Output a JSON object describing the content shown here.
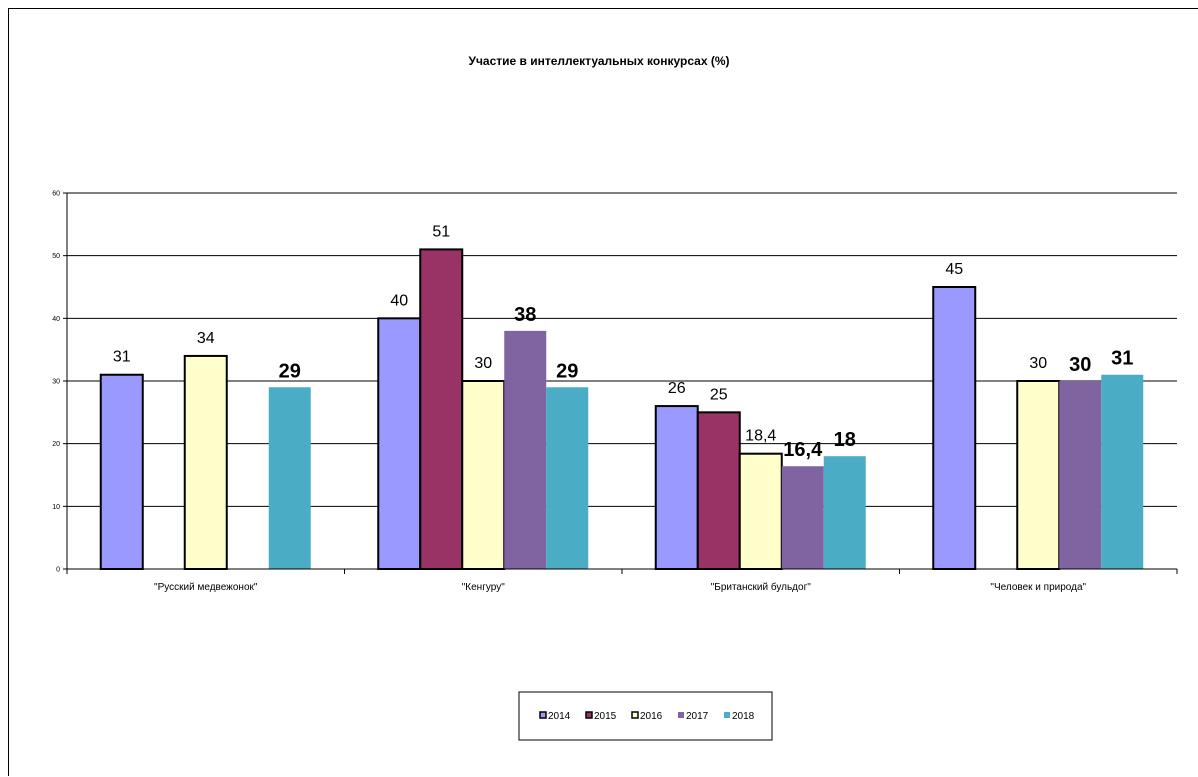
{
  "chart_data": {
    "type": "bar",
    "title": "Участие в интеллектуальных конкурсах (%)",
    "xlabel": "",
    "ylabel": "",
    "ylim": [
      0,
      60
    ],
    "yticks": [
      "0",
      "10",
      "20",
      "30",
      "40",
      "50",
      "60"
    ],
    "grid": true,
    "legend_position": "bottom",
    "categories": [
      "\"Русский медвежонок\"",
      "\"Кенгуру\"",
      "\"Британский бульдог\"",
      "\"Человек и природа\""
    ],
    "series": [
      {
        "name": "2014",
        "color": "#9999ff",
        "values": [
          31,
          40,
          26,
          45
        ],
        "labels": [
          "31",
          "40",
          "26",
          "45"
        ],
        "label_style": "normal"
      },
      {
        "name": "2015",
        "color": "#993366",
        "values": [
          null,
          51,
          25,
          null
        ],
        "labels": [
          "",
          "51",
          "25",
          ""
        ],
        "label_style": "normal"
      },
      {
        "name": "2016",
        "color": "#ffffcc",
        "values": [
          34,
          30,
          18.4,
          30
        ],
        "labels": [
          "34",
          "30",
          "18,4",
          "30"
        ],
        "label_style": "normal"
      },
      {
        "name": "2017",
        "color": "#8064a2",
        "values": [
          null,
          38,
          16.4,
          30
        ],
        "labels": [
          "",
          "38",
          "16,4",
          "30"
        ],
        "label_style": "bold"
      },
      {
        "name": "2018",
        "color": "#4bacc6",
        "values": [
          29,
          29,
          18,
          31
        ],
        "labels": [
          "29",
          "29",
          "18",
          "31"
        ],
        "label_style": "bold"
      }
    ]
  }
}
